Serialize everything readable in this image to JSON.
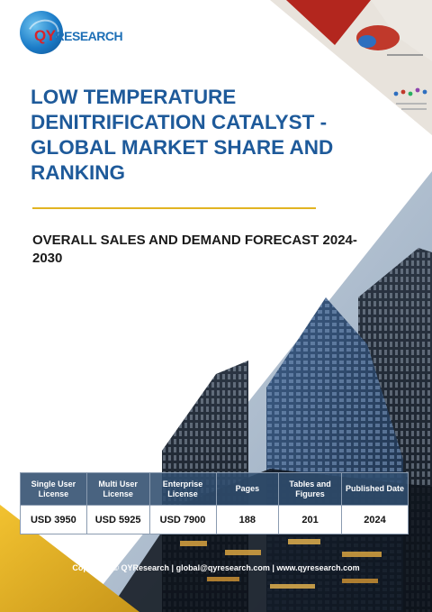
{
  "brand": {
    "logo_text": "QYRESEARCH"
  },
  "report": {
    "title": "LOW TEMPERATURE DENITRIFICATION CATALYST - GLOBAL MARKET SHARE AND RANKING",
    "subtitle": "OVERALL SALES AND DEMAND FORECAST 2024-2030"
  },
  "pricing": {
    "headers": [
      "Single User License",
      "Multi User License",
      "Enterprise License",
      "Pages",
      "Tables and Figures",
      "Published Date"
    ],
    "values": [
      "USD 3950",
      "USD 5925",
      "USD 7900",
      "188",
      "201",
      "2024"
    ]
  },
  "footer": {
    "text": "Copyright © QYResearch | global@qyresearch.com | www.qyresearch.com"
  },
  "colors": {
    "title": "#1e5a9a",
    "accent_line": "#e2b422",
    "table_header": "#304d6e",
    "brand_red": "#d8232a",
    "brand_blue": "#1d6fb6"
  }
}
